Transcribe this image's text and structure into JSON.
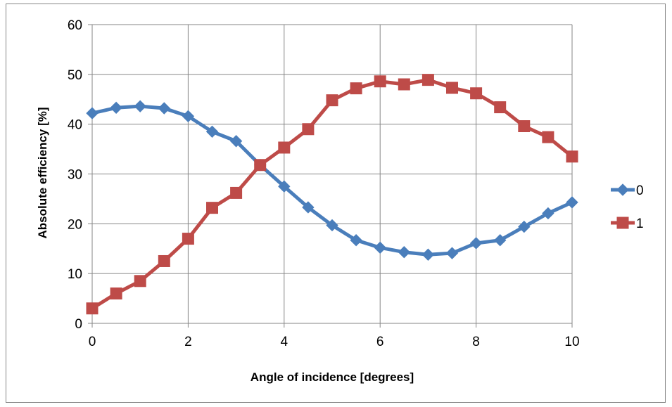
{
  "chart_data": {
    "type": "line",
    "xlabel": "Angle of incidence  [degrees]",
    "ylabel": "Absolute efficiency  [%]",
    "xlim": [
      0,
      10
    ],
    "ylim": [
      0,
      60
    ],
    "x_ticks": [
      "0",
      "2",
      "4",
      "6",
      "8",
      "10"
    ],
    "y_ticks": [
      "0",
      "10",
      "20",
      "30",
      "40",
      "50",
      "60"
    ],
    "grid": true,
    "legend_position": "right",
    "x": [
      0,
      0.5,
      1,
      1.5,
      2,
      2.5,
      3,
      3.5,
      4,
      4.5,
      5,
      5.5,
      6,
      6.5,
      7,
      7.5,
      8,
      8.5,
      9,
      9.5,
      10
    ],
    "series": [
      {
        "name": "0",
        "color": "#4a7ebb",
        "marker": "diamond",
        "values": [
          42.2,
          43.3,
          43.6,
          43.2,
          41.6,
          38.5,
          36.6,
          31.8,
          27.5,
          23.3,
          19.7,
          16.7,
          15.2,
          14.3,
          13.8,
          14.1,
          16.1,
          16.7,
          19.4,
          22.1,
          24.3
        ]
      },
      {
        "name": "1",
        "color": "#be4b48",
        "marker": "square",
        "values": [
          3.0,
          6.0,
          8.5,
          12.5,
          17.0,
          23.2,
          26.2,
          31.8,
          35.3,
          39.0,
          44.8,
          47.2,
          48.6,
          48.0,
          48.9,
          47.3,
          46.2,
          43.4,
          39.6,
          37.4,
          33.5
        ]
      }
    ]
  }
}
